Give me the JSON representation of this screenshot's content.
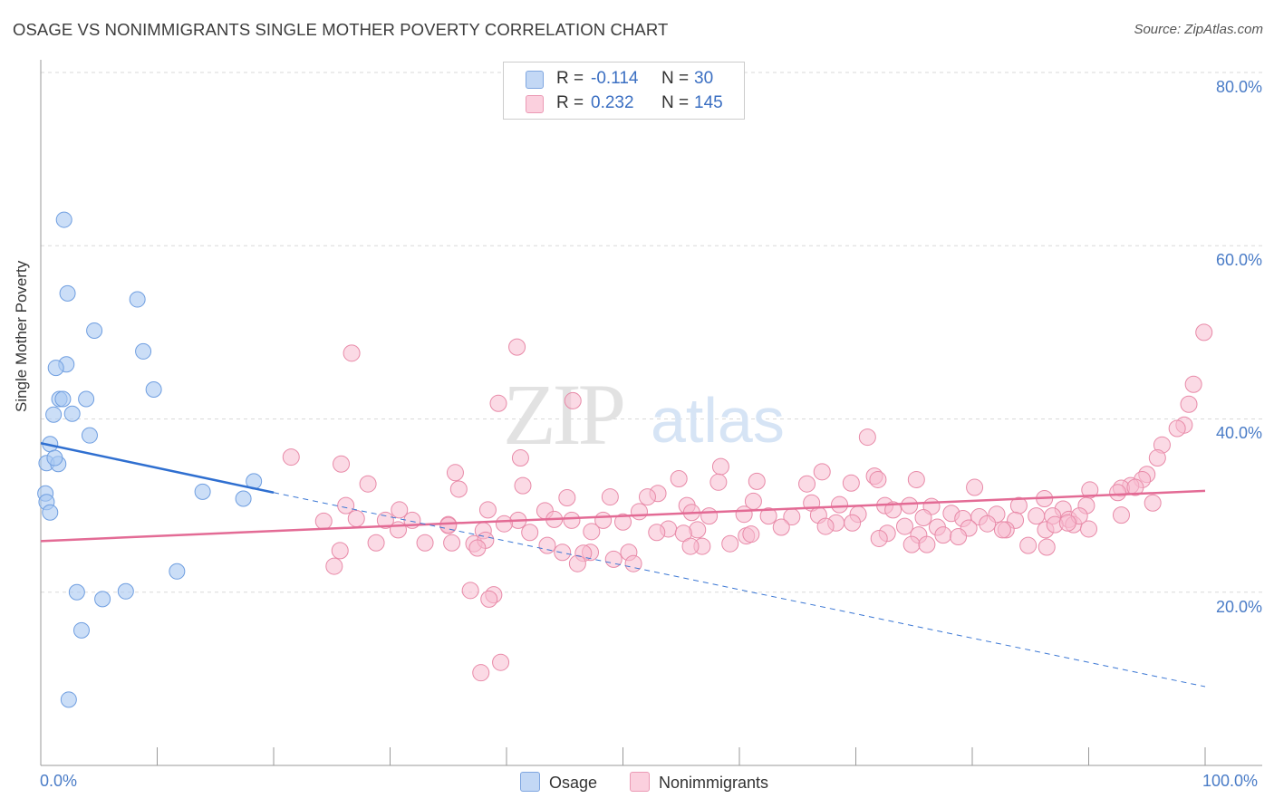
{
  "title": "OSAGE VS NONIMMIGRANTS SINGLE MOTHER POVERTY CORRELATION CHART",
  "source": "Source: ZipAtlas.com",
  "watermark": {
    "zip": "ZIP",
    "atlas": "atlas"
  },
  "legend": {
    "rows": [
      {
        "r_label": "R =",
        "r_value": "-0.114",
        "n_label": "N =",
        "n_value": "30",
        "color": "#a9c8f2"
      },
      {
        "r_label": "R =",
        "r_value": "0.232",
        "n_label": "N =",
        "n_value": "145",
        "color": "#f7bcd0"
      }
    ]
  },
  "bottom_legend": {
    "osage": "Osage",
    "nonimmigrants": "Nonimmigrants"
  },
  "chart_data": {
    "type": "scatter",
    "title": "OSAGE VS NONIMMIGRANTS SINGLE MOTHER POVERTY CORRELATION CHART",
    "xlabel": "",
    "ylabel": "Single Mother Poverty",
    "xlim": [
      0,
      100
    ],
    "ylim": [
      0,
      80
    ],
    "y_ticks": [
      20,
      40,
      60,
      80
    ],
    "y_tick_labels": [
      "20.0%",
      "40.0%",
      "60.0%",
      "80.0%"
    ],
    "x_tick_labels": [
      "0.0%",
      "100.0%"
    ],
    "grid": true,
    "series": [
      {
        "name": "Osage",
        "color": "#a9c8f2",
        "stroke": "#6f9ee0",
        "points": [
          [
            2.0,
            63.0
          ],
          [
            2.3,
            54.5
          ],
          [
            8.3,
            53.8
          ],
          [
            4.6,
            50.2
          ],
          [
            8.8,
            47.8
          ],
          [
            2.2,
            46.3
          ],
          [
            1.3,
            45.9
          ],
          [
            9.7,
            43.4
          ],
          [
            1.6,
            42.3
          ],
          [
            1.9,
            42.3
          ],
          [
            3.9,
            42.3
          ],
          [
            2.7,
            40.6
          ],
          [
            1.1,
            40.5
          ],
          [
            4.2,
            38.1
          ],
          [
            0.8,
            37.1
          ],
          [
            0.5,
            34.9
          ],
          [
            1.5,
            34.8
          ],
          [
            1.2,
            35.5
          ],
          [
            18.3,
            32.8
          ],
          [
            13.9,
            31.6
          ],
          [
            0.4,
            31.4
          ],
          [
            17.4,
            30.8
          ],
          [
            0.5,
            30.4
          ],
          [
            0.8,
            29.2
          ],
          [
            11.7,
            22.4
          ],
          [
            7.3,
            20.1
          ],
          [
            3.1,
            20.0
          ],
          [
            5.3,
            19.2
          ],
          [
            3.5,
            15.6
          ],
          [
            2.4,
            7.6
          ]
        ],
        "trend": {
          "x": [
            0,
            20
          ],
          "y": [
            37.2,
            31.5
          ]
        },
        "trend_dashed": {
          "x": [
            20,
            100
          ],
          "y": [
            31.5,
            9.1
          ]
        }
      },
      {
        "name": "Nonimmigrants",
        "color": "#f7bcd0",
        "stroke": "#e88aa8",
        "points": [
          [
            99.9,
            50.0
          ],
          [
            40.9,
            48.3
          ],
          [
            26.7,
            47.6
          ],
          [
            99.0,
            44.0
          ],
          [
            98.6,
            41.7
          ],
          [
            39.3,
            41.8
          ],
          [
            45.7,
            42.1
          ],
          [
            98.2,
            39.3
          ],
          [
            97.6,
            38.9
          ],
          [
            71.0,
            37.9
          ],
          [
            96.3,
            37.0
          ],
          [
            95.9,
            35.5
          ],
          [
            21.5,
            35.6
          ],
          [
            41.2,
            35.5
          ],
          [
            25.8,
            34.8
          ],
          [
            58.4,
            34.5
          ],
          [
            95.0,
            33.6
          ],
          [
            94.6,
            33.0
          ],
          [
            67.1,
            33.9
          ],
          [
            71.6,
            33.4
          ],
          [
            35.6,
            33.8
          ],
          [
            54.8,
            33.1
          ],
          [
            61.5,
            32.8
          ],
          [
            65.8,
            32.5
          ],
          [
            71.9,
            33.0
          ],
          [
            75.2,
            33.0
          ],
          [
            28.1,
            32.5
          ],
          [
            58.2,
            32.7
          ],
          [
            93.6,
            32.3
          ],
          [
            69.6,
            32.6
          ],
          [
            41.4,
            32.3
          ],
          [
            53.0,
            31.4
          ],
          [
            92.8,
            32.0
          ],
          [
            94.0,
            32.1
          ],
          [
            90.1,
            31.8
          ],
          [
            72.5,
            30.0
          ],
          [
            92.5,
            31.5
          ],
          [
            35.9,
            31.9
          ],
          [
            86.2,
            30.8
          ],
          [
            80.2,
            32.1
          ],
          [
            48.9,
            31.0
          ],
          [
            52.1,
            31.0
          ],
          [
            45.2,
            30.9
          ],
          [
            55.5,
            30.0
          ],
          [
            61.2,
            30.5
          ],
          [
            66.2,
            30.3
          ],
          [
            68.6,
            30.1
          ],
          [
            73.2,
            29.5
          ],
          [
            84.0,
            30.0
          ],
          [
            87.8,
            29.6
          ],
          [
            89.8,
            30.0
          ],
          [
            26.2,
            30.0
          ],
          [
            30.8,
            29.5
          ],
          [
            38.4,
            29.5
          ],
          [
            43.3,
            29.4
          ],
          [
            51.4,
            29.3
          ],
          [
            55.9,
            29.2
          ],
          [
            60.4,
            29.0
          ],
          [
            64.5,
            28.7
          ],
          [
            70.2,
            29.0
          ],
          [
            74.6,
            30.0
          ],
          [
            76.5,
            29.9
          ],
          [
            78.2,
            29.1
          ],
          [
            80.6,
            28.7
          ],
          [
            82.1,
            29.0
          ],
          [
            83.7,
            28.3
          ],
          [
            86.9,
            28.8
          ],
          [
            88.3,
            28.4
          ],
          [
            88.7,
            27.8
          ],
          [
            27.1,
            28.5
          ],
          [
            31.9,
            28.3
          ],
          [
            41.0,
            28.3
          ],
          [
            45.6,
            28.3
          ],
          [
            48.3,
            28.3
          ],
          [
            57.4,
            28.8
          ],
          [
            62.5,
            28.8
          ],
          [
            66.8,
            28.9
          ],
          [
            68.3,
            28.0
          ],
          [
            75.8,
            28.6
          ],
          [
            79.2,
            28.5
          ],
          [
            81.3,
            27.9
          ],
          [
            85.5,
            28.8
          ],
          [
            89.2,
            28.8
          ],
          [
            92.8,
            28.9
          ],
          [
            24.3,
            28.2
          ],
          [
            29.6,
            28.3
          ],
          [
            35.0,
            27.8
          ],
          [
            39.8,
            27.9
          ],
          [
            44.1,
            28.4
          ],
          [
            50.0,
            28.1
          ],
          [
            53.9,
            27.3
          ],
          [
            56.4,
            27.2
          ],
          [
            63.6,
            27.5
          ],
          [
            67.4,
            27.6
          ],
          [
            69.7,
            28.0
          ],
          [
            74.2,
            27.6
          ],
          [
            77.0,
            27.5
          ],
          [
            79.7,
            27.4
          ],
          [
            82.9,
            27.2
          ],
          [
            86.3,
            27.2
          ],
          [
            87.1,
            27.8
          ],
          [
            88.2,
            28.0
          ],
          [
            90.0,
            27.3
          ],
          [
            30.7,
            27.2
          ],
          [
            35.0,
            27.7
          ],
          [
            38.0,
            27.1
          ],
          [
            42.0,
            26.9
          ],
          [
            47.3,
            27.0
          ],
          [
            52.9,
            26.9
          ],
          [
            55.2,
            26.8
          ],
          [
            60.6,
            26.5
          ],
          [
            61.0,
            26.7
          ],
          [
            72.7,
            26.8
          ],
          [
            75.4,
            26.6
          ],
          [
            77.5,
            26.6
          ],
          [
            78.8,
            26.4
          ],
          [
            82.6,
            27.2
          ],
          [
            28.8,
            25.7
          ],
          [
            33.0,
            25.7
          ],
          [
            35.3,
            25.7
          ],
          [
            37.2,
            25.6
          ],
          [
            38.2,
            26.0
          ],
          [
            43.5,
            25.4
          ],
          [
            56.8,
            25.3
          ],
          [
            59.2,
            25.6
          ],
          [
            72.0,
            26.2
          ],
          [
            74.8,
            25.5
          ],
          [
            76.1,
            25.5
          ],
          [
            84.8,
            25.4
          ],
          [
            86.4,
            25.2
          ],
          [
            25.7,
            24.8
          ],
          [
            37.5,
            25.1
          ],
          [
            44.8,
            24.6
          ],
          [
            47.2,
            24.6
          ],
          [
            50.5,
            24.6
          ],
          [
            55.8,
            25.3
          ],
          [
            46.6,
            24.5
          ],
          [
            49.2,
            23.8
          ],
          [
            50.9,
            23.3
          ],
          [
            25.2,
            23.0
          ],
          [
            46.1,
            23.3
          ],
          [
            36.9,
            20.2
          ],
          [
            38.9,
            19.7
          ],
          [
            38.5,
            19.2
          ],
          [
            39.5,
            11.9
          ],
          [
            37.8,
            10.7
          ],
          [
            95.5,
            30.3
          ]
        ],
        "trend": {
          "x": [
            0,
            100
          ],
          "y": [
            25.9,
            31.7
          ]
        }
      }
    ]
  }
}
